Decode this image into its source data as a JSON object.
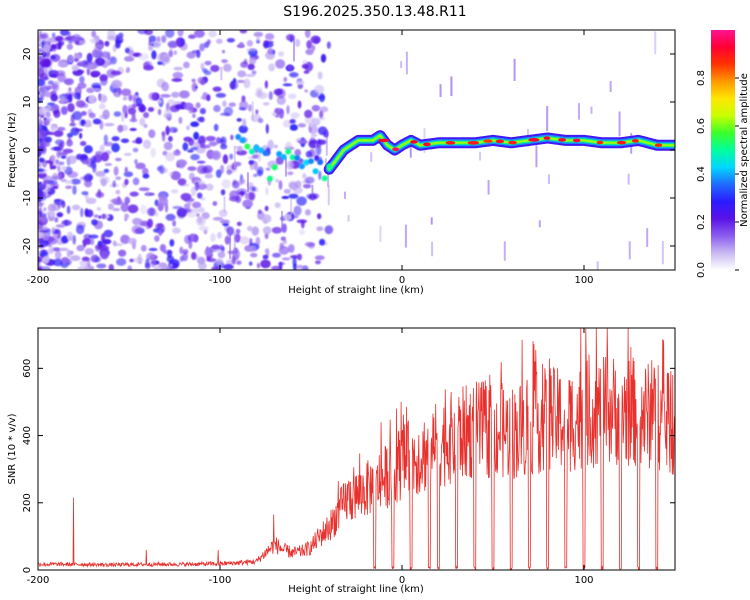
{
  "title": "S196.2025.350.13.48.R11",
  "colors": {
    "trace": "#e8312d",
    "frame": "#000000",
    "cb_stops": [
      "#ffffff",
      "#c9b8f2",
      "#8b5cf0",
      "#5a12e6",
      "#2b1cff",
      "#1f6bff",
      "#00d8ff",
      "#00ff9c",
      "#3cff2a",
      "#c8ff00",
      "#ffe600",
      "#ff9900",
      "#ff3300",
      "#ff0033",
      "#ff1493"
    ]
  },
  "chart_data": [
    {
      "type": "heatmap",
      "title": "S196.2025.350.13.48.R11",
      "xlabel": "Height of straight line (km)",
      "ylabel": "Frequency (Hz)",
      "xlim": [
        -200,
        150
      ],
      "ylim": [
        -25,
        25
      ],
      "xticks": [
        "-200",
        "-100",
        "0",
        "100"
      ],
      "yticks": [
        "-20",
        "-10",
        "0",
        "10",
        "20"
      ],
      "colorbar": {
        "label": "Normalized spectral amplitude",
        "range": [
          0,
          1
        ],
        "ticks": [
          "0.0",
          "0.2",
          "0.4",
          "0.6",
          "0.8"
        ]
      },
      "ridge": {
        "x": [
          -90,
          -85,
          -80,
          -75,
          -72,
          -68,
          -64,
          -60,
          -56,
          -52,
          -48,
          -44,
          -40,
          -36,
          -32,
          -28,
          -24,
          -20,
          -16,
          -12,
          -8,
          -4,
          0,
          5,
          10,
          20,
          30,
          40,
          50,
          60,
          70,
          80,
          90,
          100,
          110,
          120,
          130,
          140,
          150
        ],
        "y": [
          4,
          1,
          2,
          -1,
          -6,
          -2,
          0,
          -1,
          -1,
          -3,
          -4,
          -4,
          -4,
          -2,
          0,
          1,
          2,
          2,
          2,
          3,
          1,
          0,
          1,
          2,
          1,
          1.5,
          1.5,
          1.5,
          2,
          1.5,
          2,
          2.5,
          2,
          2,
          1.5,
          1.5,
          2,
          1,
          1
        ]
      }
    },
    {
      "type": "line",
      "xlabel": "Height of straight line (km)",
      "ylabel": "SNR (10 * v/v)",
      "xlim": [
        -200,
        150
      ],
      "ylim": [
        0,
        720
      ],
      "xticks": [
        "-200",
        "-100",
        "0",
        "100"
      ],
      "yticks": [
        "0",
        "200",
        "400",
        "600"
      ],
      "series": [
        {
          "name": "SNR",
          "envelope_x": [
            -200,
            -190,
            -180,
            -160,
            -140,
            -120,
            -100,
            -90,
            -80,
            -75,
            -70,
            -65,
            -60,
            -55,
            -50,
            -45,
            -40,
            -35,
            -30,
            -25,
            -20,
            -15,
            -10,
            -5,
            0,
            10,
            20,
            30,
            40,
            50,
            60,
            70,
            80,
            90,
            100,
            110,
            120,
            130,
            140,
            150
          ],
          "envelope_y": [
            20,
            20,
            20,
            18,
            20,
            20,
            22,
            25,
            30,
            60,
            90,
            70,
            60,
            65,
            80,
            120,
            150,
            200,
            250,
            260,
            280,
            300,
            320,
            350,
            380,
            400,
            440,
            470,
            490,
            490,
            480,
            500,
            530,
            520,
            540,
            560,
            560,
            550,
            530,
            500
          ],
          "spikes": [
            {
              "x": -180.5,
              "y": 215
            },
            {
              "x": -140.5,
              "y": 60
            },
            {
              "x": -101,
              "y": 60
            },
            {
              "x": -70.5,
              "y": 165
            }
          ],
          "dropouts_x": [
            -15,
            -5,
            5,
            15,
            20,
            30,
            40,
            50,
            60,
            70,
            80,
            90,
            100,
            110,
            120,
            130,
            140
          ]
        }
      ]
    }
  ]
}
